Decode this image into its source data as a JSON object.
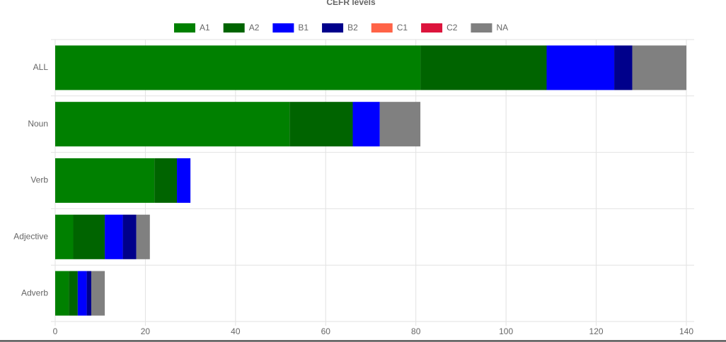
{
  "chart_data": {
    "type": "stacked-hbar",
    "title": "CEFR levels",
    "categories": [
      "ALL",
      "Noun",
      "Verb",
      "Adjective",
      "Adverb"
    ],
    "series": [
      {
        "name": "A1",
        "color": "#008000",
        "values": [
          81,
          52,
          22,
          4,
          3
        ]
      },
      {
        "name": "A2",
        "color": "#006400",
        "values": [
          28,
          14,
          5,
          7,
          2
        ]
      },
      {
        "name": "B1",
        "color": "#0000ff",
        "values": [
          15,
          6,
          3,
          4,
          2
        ]
      },
      {
        "name": "B2",
        "color": "#00008b",
        "values": [
          4,
          0,
          0,
          3,
          1
        ]
      },
      {
        "name": "C1",
        "color": "#ff6347",
        "values": [
          0,
          0,
          0,
          0,
          0
        ]
      },
      {
        "name": "C2",
        "color": "#dc143c",
        "values": [
          0,
          0,
          0,
          0,
          0
        ]
      },
      {
        "name": "NA",
        "color": "#808080",
        "values": [
          12,
          9,
          0,
          3,
          3
        ]
      }
    ],
    "xlim": [
      0,
      140
    ],
    "xticks": [
      0,
      20,
      40,
      60,
      80,
      100,
      120,
      140
    ],
    "grid": true,
    "legend": "top"
  }
}
